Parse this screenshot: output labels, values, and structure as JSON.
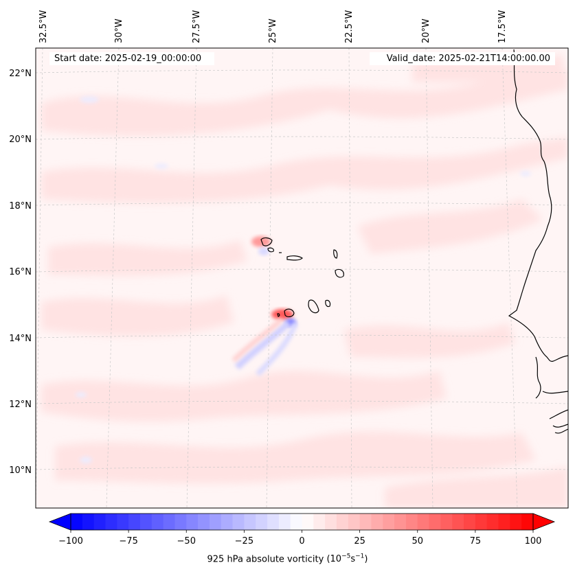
{
  "map": {
    "start_date": "Start date: 2025-02-19_00:00:00",
    "valid_date": "Valid_date: 2025-02-21T14:00:00.00",
    "lon_labels": [
      "32.5°W",
      "30°W",
      "27.5°W",
      "25°W",
      "22.5°W",
      "20°W",
      "17.5°W"
    ],
    "lat_labels": [
      "22°N",
      "20°N",
      "18°N",
      "16°N",
      "14°N",
      "12°N",
      "10°N"
    ],
    "colors": {
      "background_tint": "#fff3f3",
      "positive_light": "#ffe2e2",
      "positive_strong": "#ff4040",
      "negative_light": "#e8e8ff",
      "coastline": "#000000",
      "gridline": "#c8c8c8"
    }
  },
  "colorbar": {
    "variable": "925 hPa absolute vorticity",
    "unit_prefix": "(10",
    "unit_exp1": "−5",
    "unit_mid": "s",
    "unit_exp2": "−1",
    "unit_suffix": ")",
    "tick_labels": [
      "−100",
      "−75",
      "−50",
      "−25",
      "0",
      "25",
      "50",
      "75",
      "100"
    ],
    "min": -100,
    "max": 100,
    "extend": "both",
    "colormap": "bwr"
  }
}
